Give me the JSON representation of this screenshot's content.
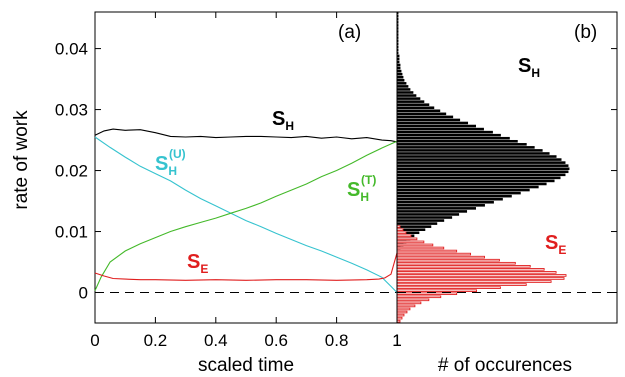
{
  "chart_data": [
    {
      "type": "line",
      "panel_label": "(a)",
      "xlabel": "scaled time",
      "ylabel": "rate of work",
      "xlim": [
        0,
        1
      ],
      "ylim": [
        -0.005,
        0.046
      ],
      "x_ticks": [
        "0",
        "0.2",
        "0.4",
        "0.6",
        "0.8",
        "1"
      ],
      "x_tick_values": [
        0,
        0.2,
        0.4,
        0.6,
        0.8,
        1
      ],
      "y_ticks": [
        "0",
        "0.01",
        "0.02",
        "0.03",
        "0.04"
      ],
      "y_tick_values": [
        0,
        0.01,
        0.02,
        0.03,
        0.04
      ],
      "reference_line": {
        "y": 0,
        "style": "dashed"
      },
      "series": [
        {
          "name": "S_H",
          "label_main": "S",
          "label_sub": "H",
          "label_sup": "",
          "color": "#000000",
          "x": [
            0,
            0.03,
            0.06,
            0.1,
            0.15,
            0.2,
            0.25,
            0.3,
            0.35,
            0.4,
            0.45,
            0.5,
            0.55,
            0.6,
            0.65,
            0.7,
            0.75,
            0.8,
            0.85,
            0.9,
            0.95,
            0.98,
            1
          ],
          "values": [
            0.0258,
            0.0265,
            0.0268,
            0.0266,
            0.0267,
            0.0262,
            0.0256,
            0.0255,
            0.0256,
            0.0254,
            0.0255,
            0.0256,
            0.0256,
            0.0255,
            0.0254,
            0.0256,
            0.0253,
            0.0255,
            0.0252,
            0.0254,
            0.025,
            0.0249,
            0.0247
          ]
        },
        {
          "name": "S_H^(U)",
          "label_main": "S",
          "label_sub": "H",
          "label_sup": "(U)",
          "color": "#36c3cf",
          "x": [
            0,
            0.05,
            0.1,
            0.15,
            0.2,
            0.25,
            0.3,
            0.35,
            0.4,
            0.45,
            0.5,
            0.55,
            0.6,
            0.65,
            0.7,
            0.75,
            0.8,
            0.85,
            0.9,
            0.95,
            0.98,
            1
          ],
          "values": [
            0.0255,
            0.0238,
            0.0222,
            0.0207,
            0.0195,
            0.0183,
            0.0168,
            0.0154,
            0.0142,
            0.013,
            0.0118,
            0.0108,
            0.0097,
            0.0087,
            0.0077,
            0.0068,
            0.0058,
            0.0048,
            0.0037,
            0.0025,
            0.001,
            0.0
          ]
        },
        {
          "name": "S_H^(T)",
          "label_main": "S",
          "label_sub": "H",
          "label_sup": "(T)",
          "color": "#44b92a",
          "x": [
            0,
            0.02,
            0.05,
            0.1,
            0.15,
            0.2,
            0.25,
            0.3,
            0.35,
            0.4,
            0.45,
            0.5,
            0.55,
            0.6,
            0.65,
            0.7,
            0.75,
            0.8,
            0.85,
            0.9,
            0.95,
            1
          ],
          "values": [
            0.0003,
            0.0025,
            0.005,
            0.0068,
            0.008,
            0.009,
            0.01,
            0.0108,
            0.0115,
            0.0122,
            0.013,
            0.0138,
            0.0147,
            0.0158,
            0.0168,
            0.0178,
            0.019,
            0.02,
            0.0212,
            0.0225,
            0.0237,
            0.0248
          ]
        },
        {
          "name": "S_E",
          "label_main": "S",
          "label_sub": "E",
          "label_sup": "",
          "color": "#e01e1e",
          "x": [
            0,
            0.03,
            0.06,
            0.1,
            0.15,
            0.2,
            0.3,
            0.4,
            0.5,
            0.6,
            0.7,
            0.8,
            0.9,
            0.94,
            0.96,
            0.98,
            1
          ],
          "values": [
            0.0032,
            0.0027,
            0.0023,
            0.0022,
            0.0021,
            0.0021,
            0.002,
            0.0021,
            0.002,
            0.0021,
            0.0021,
            0.002,
            0.0021,
            0.0022,
            0.0024,
            0.003,
            0.0065
          ]
        }
      ]
    },
    {
      "type": "bar",
      "orientation": "horizontal",
      "panel_label": "(b)",
      "xlabel": "# of occurences",
      "x_ticks": [
        "1"
      ],
      "ylim": [
        -0.005,
        0.046
      ],
      "reference_line": {
        "y": 0,
        "style": "dashed"
      },
      "bin_width": 0.0005,
      "series": [
        {
          "name": "S_H",
          "label_main": "S",
          "label_sub": "H",
          "color": "#000000",
          "fill": "#000000",
          "bin_centers": [
            0.0073,
            0.0078,
            0.0083,
            0.0088,
            0.0093,
            0.0098,
            0.0103,
            0.0108,
            0.0113,
            0.0118,
            0.0123,
            0.0128,
            0.0133,
            0.0138,
            0.0143,
            0.0148,
            0.0153,
            0.0158,
            0.0163,
            0.0168,
            0.0173,
            0.0178,
            0.0183,
            0.0188,
            0.0193,
            0.0198,
            0.0203,
            0.0208,
            0.0213,
            0.0218,
            0.0223,
            0.0228,
            0.0233,
            0.0238,
            0.0243,
            0.0248,
            0.0253,
            0.0258,
            0.0263,
            0.0268,
            0.0273,
            0.0278,
            0.0283,
            0.0288,
            0.0293,
            0.0298,
            0.0303,
            0.0308,
            0.0313,
            0.0318,
            0.0323,
            0.0328,
            0.0333,
            0.0338,
            0.0343,
            0.0348,
            0.0353,
            0.0358,
            0.0363,
            0.0368,
            0.0373,
            0.0378,
            0.0383,
            0.0388,
            0.0393,
            0.0398,
            0.0403,
            0.0408,
            0.0413,
            0.0418,
            0.0423,
            0.0428,
            0.0433,
            0.0438,
            0.0443,
            0.0448,
            0.0453,
            0.0458
          ],
          "counts": [
            3,
            6,
            9,
            13,
            17,
            22,
            28,
            34,
            40,
            47,
            55,
            62,
            70,
            79,
            88,
            97,
            106,
            115,
            124,
            133,
            142,
            150,
            158,
            164,
            169,
            172,
            173,
            172,
            169,
            165,
            160,
            153,
            146,
            138,
            130,
            121,
            113,
            104,
            96,
            87,
            79,
            71,
            63,
            56,
            49,
            43,
            37,
            32,
            27,
            23,
            19,
            16,
            13,
            11,
            9,
            7,
            6,
            5,
            4,
            3,
            3,
            2,
            2,
            2,
            1,
            1,
            1,
            1,
            1,
            1,
            1,
            1,
            1,
            1,
            1,
            1,
            1,
            1
          ]
        },
        {
          "name": "S_E",
          "label_main": "S",
          "label_sub": "E",
          "color": "#e01e1e",
          "fill": "#ffffff",
          "bin_centers": [
            -0.0047,
            -0.0042,
            -0.0037,
            -0.0032,
            -0.0027,
            -0.0022,
            -0.0017,
            -0.0012,
            -0.0007,
            -0.0002,
            0.0003,
            0.0008,
            0.0013,
            0.0018,
            0.0023,
            0.0028,
            0.0033,
            0.0038,
            0.0043,
            0.0048,
            0.0053,
            0.0058,
            0.0063,
            0.0068,
            0.0073,
            0.0078,
            0.0083,
            0.0088,
            0.0093,
            0.0098,
            0.0103,
            0.0108
          ],
          "counts": [
            3,
            5,
            7,
            10,
            13,
            18,
            24,
            32,
            44,
            60,
            80,
            104,
            130,
            155,
            168,
            170,
            160,
            148,
            134,
            119,
            103,
            88,
            74,
            60,
            47,
            36,
            27,
            20,
            14,
            9,
            6,
            3
          ]
        }
      ]
    }
  ]
}
